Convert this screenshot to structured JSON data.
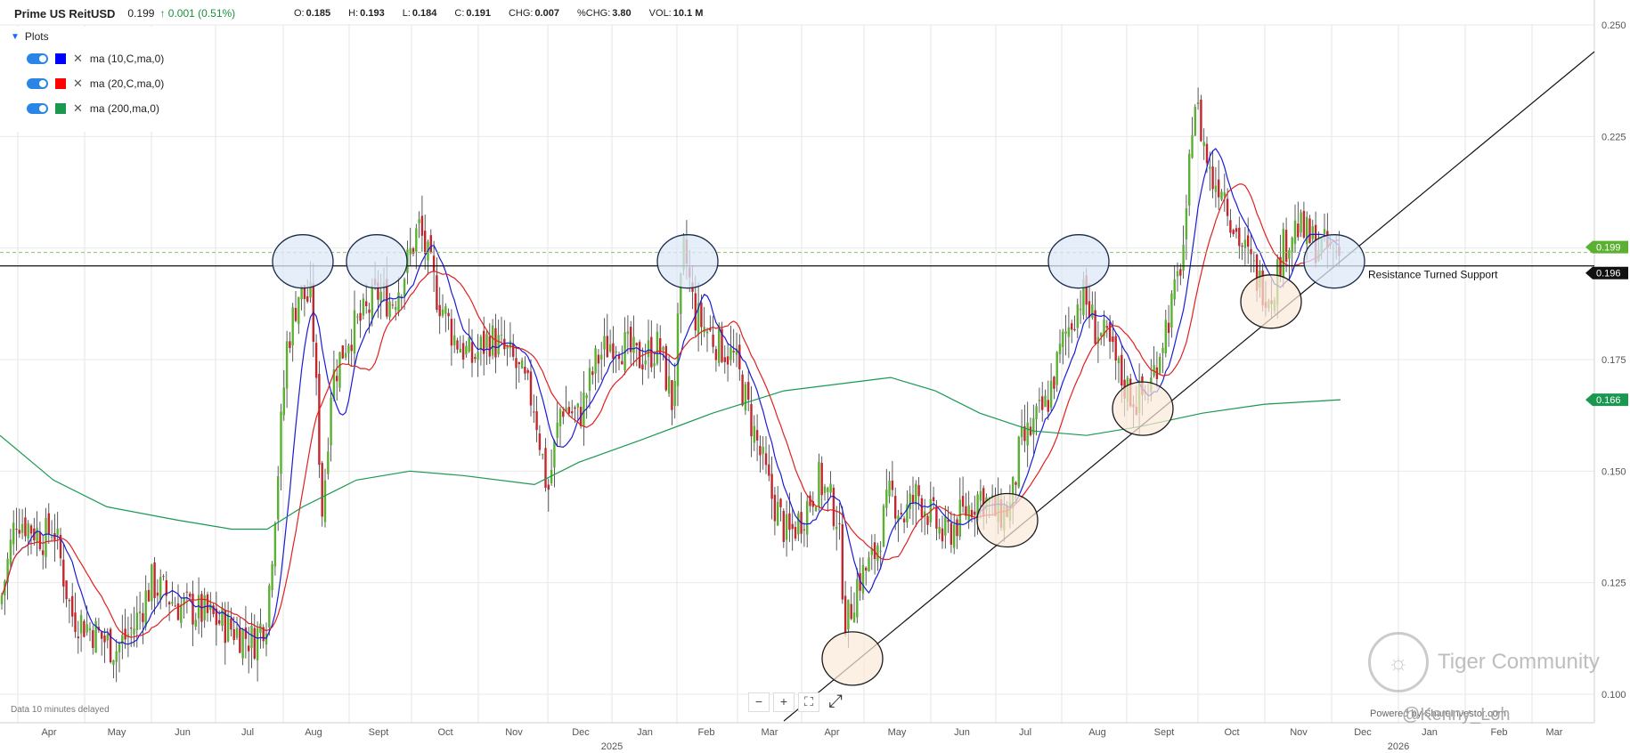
{
  "header": {
    "symbol": "Prime US ReitUSD",
    "last": "0.199",
    "change": "0.001 (0.51%)",
    "ohlc": [
      {
        "k": "O:",
        "v": "0.185"
      },
      {
        "k": "H:",
        "v": "0.193"
      },
      {
        "k": "L:",
        "v": "0.184"
      },
      {
        "k": "C:",
        "v": "0.191"
      },
      {
        "k": "CHG:",
        "v": "0.007"
      },
      {
        "k": "%CHG:",
        "v": "3.80"
      },
      {
        "k": "VOL:",
        "v": "10.1 M"
      }
    ]
  },
  "plots_panel": {
    "title": "Plots",
    "items": [
      {
        "label": "ma (10,C,ma,0)",
        "color": "#0000ff"
      },
      {
        "label": "ma (20,C,ma,0)",
        "color": "#ff0000"
      },
      {
        "label": "ma (200,ma,0)",
        "color": "#1a9850"
      }
    ]
  },
  "footer": {
    "delayed": "Data 10 minutes delayed",
    "powered": "Powered by ShareInvestor.com",
    "watermark": "Tiger Community",
    "handle": "@Kenny_Loh"
  },
  "colors": {
    "up": "#5ab031",
    "down": "#c1272d",
    "ma10": "#1b1bd6",
    "ma20": "#e02020",
    "ma200": "#1a9850",
    "circle_blue": "#dce8f7",
    "circle_peach": "#fbe9d8"
  },
  "chart_data": {
    "type": "candlestick",
    "yaxis": {
      "min": 0.1,
      "max": 0.25,
      "ticks": [
        "0.100",
        "0.125",
        "0.150",
        "0.175",
        "0.200",
        "0.225",
        "0.250"
      ],
      "position": "right"
    },
    "xaxis": {
      "months": [
        "Apr",
        "May",
        "Jun",
        "Jul",
        "Aug",
        "Sept",
        "Oct",
        "Nov",
        "Dec",
        "Jan",
        "Feb",
        "Mar",
        "Apr",
        "May",
        "Jun",
        "Jul",
        "Aug",
        "Sept",
        "Oct",
        "Nov",
        "Dec",
        "Jan",
        "Feb",
        "Mar"
      ],
      "year_labels": [
        {
          "label": "2025",
          "month_index": 9
        },
        {
          "label": "2026",
          "month_index": 21
        }
      ]
    },
    "price_tags": [
      {
        "label": "0.199",
        "value": 0.199,
        "color": "#5ab031"
      },
      {
        "label": "0.196",
        "value": 0.196,
        "color": "#111111"
      },
      {
        "label": "0.166",
        "value": 0.166,
        "color": "#1a9850"
      }
    ],
    "support_line_value": 0.196,
    "support_annotation": "Resistance Turned Support",
    "ohlc_monthly_anchor": [
      {
        "month": 0,
        "close": 0.13
      },
      {
        "month": 1,
        "close": 0.112
      },
      {
        "month": 2,
        "close": 0.12
      },
      {
        "month": 3,
        "close": 0.115
      },
      {
        "month": 4,
        "close": 0.19
      },
      {
        "month": 5,
        "close": 0.19
      },
      {
        "month": 6,
        "close": 0.19
      },
      {
        "month": 7,
        "close": 0.18
      },
      {
        "month": 8,
        "close": 0.165
      },
      {
        "month": 9,
        "close": 0.18
      },
      {
        "month": 10,
        "close": 0.175
      },
      {
        "month": 11,
        "close": 0.14
      },
      {
        "month": 12,
        "close": 0.12
      },
      {
        "month": 13,
        "close": 0.14
      },
      {
        "month": 14,
        "close": 0.14
      },
      {
        "month": 15,
        "close": 0.175
      },
      {
        "month": 16,
        "close": 0.17
      },
      {
        "month": 17,
        "close": 0.23
      },
      {
        "month": 18,
        "close": 0.19
      },
      {
        "month": 19,
        "close": 0.199
      }
    ]
  }
}
